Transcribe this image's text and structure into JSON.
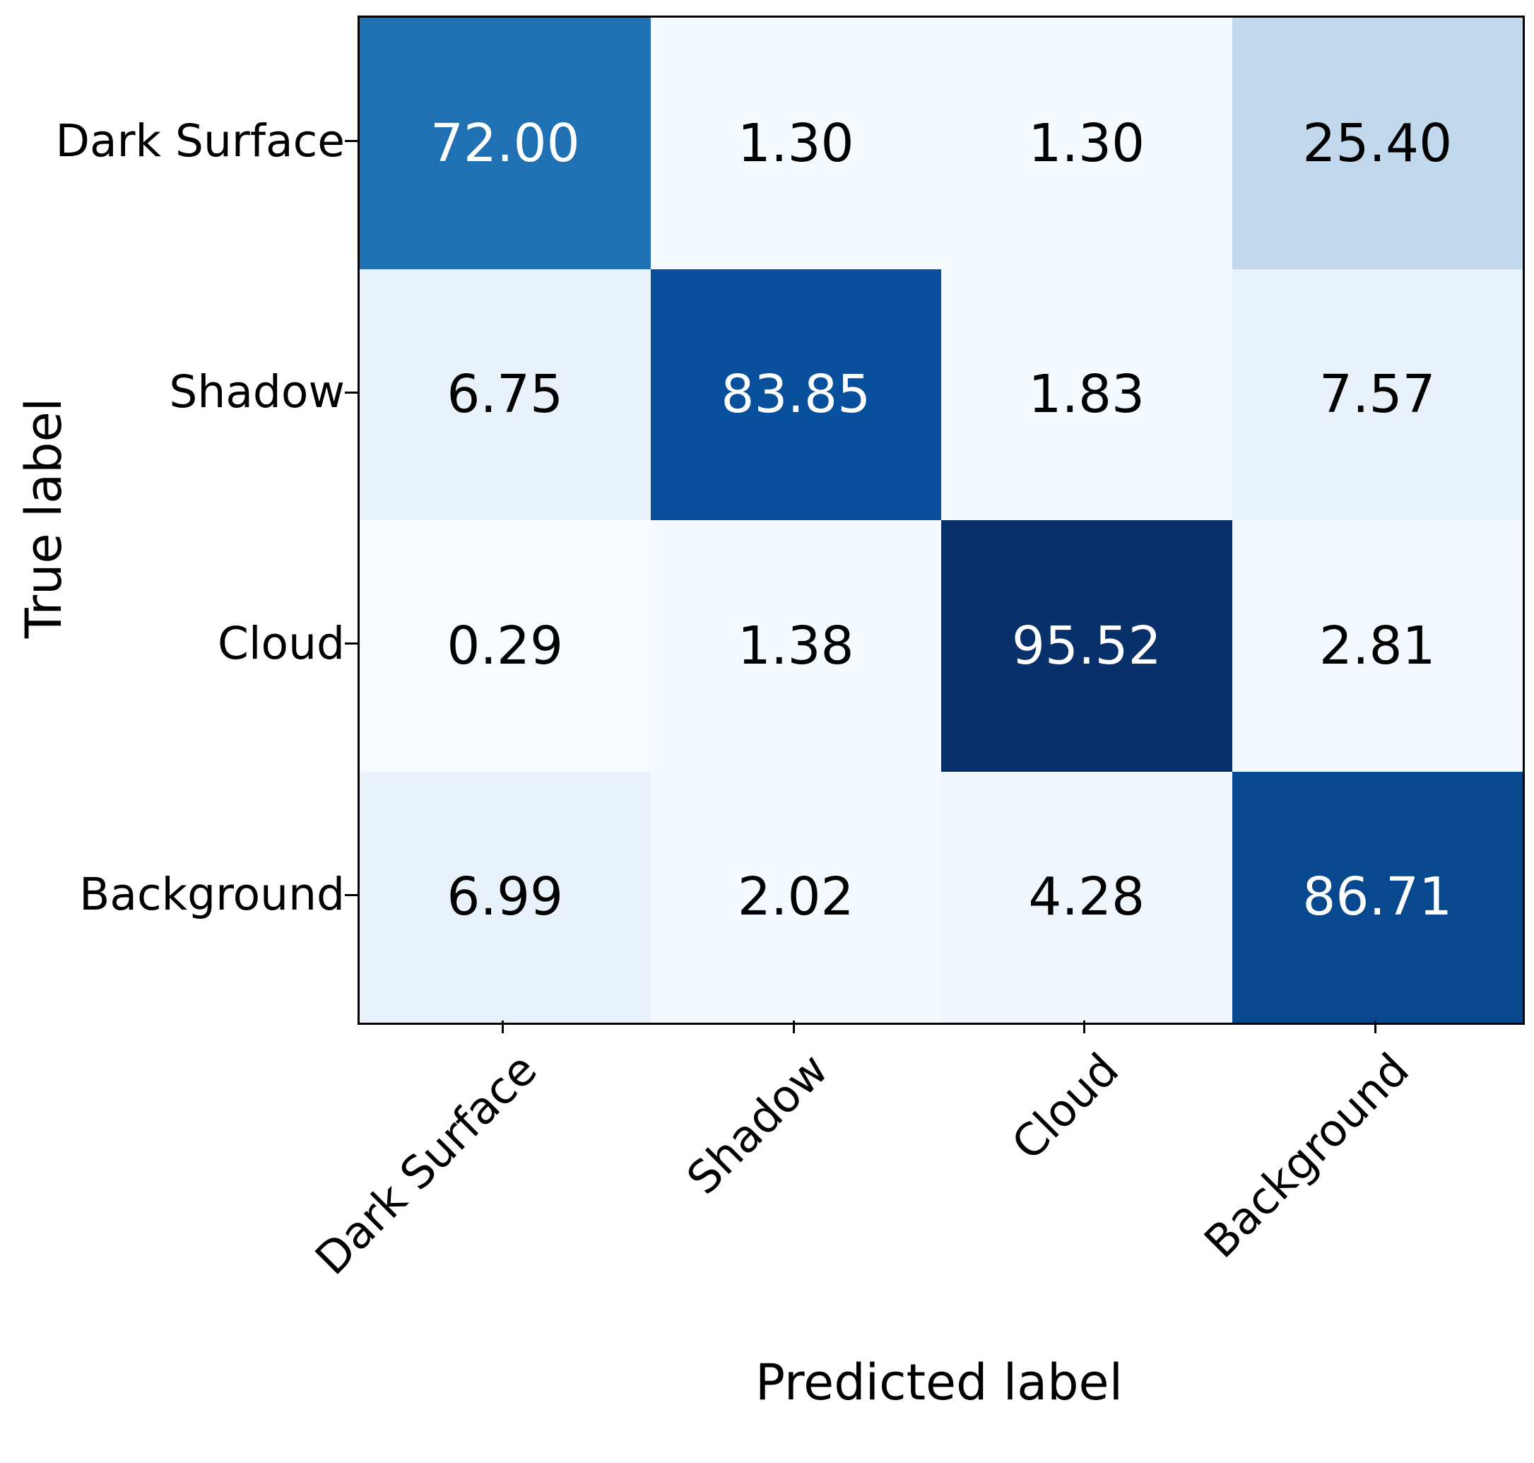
{
  "chart_data": {
    "type": "heatmap",
    "title": "",
    "xlabel": "Predicted label",
    "ylabel": "True label",
    "categories": [
      "Dark Surface",
      "Shadow",
      "Cloud",
      "Background"
    ],
    "matrix": [
      [
        72.0,
        1.3,
        1.3,
        25.4
      ],
      [
        6.75,
        83.85,
        1.83,
        7.57
      ],
      [
        0.29,
        1.38,
        95.52,
        2.81
      ],
      [
        6.99,
        2.02,
        4.28,
        86.71
      ]
    ],
    "vmin": 0.29,
    "vmax": 95.52,
    "value_decimals": 2,
    "colormap": "Blues",
    "colormap_stops": [
      "#f7fbff",
      "#deebf7",
      "#c6dbef",
      "#9ecae1",
      "#6baed6",
      "#4292c6",
      "#2171b5",
      "#08519c",
      "#08306b"
    ],
    "text_color_high": "#ffffff",
    "text_color_low": "#000000",
    "legend": "none",
    "grid": false
  }
}
